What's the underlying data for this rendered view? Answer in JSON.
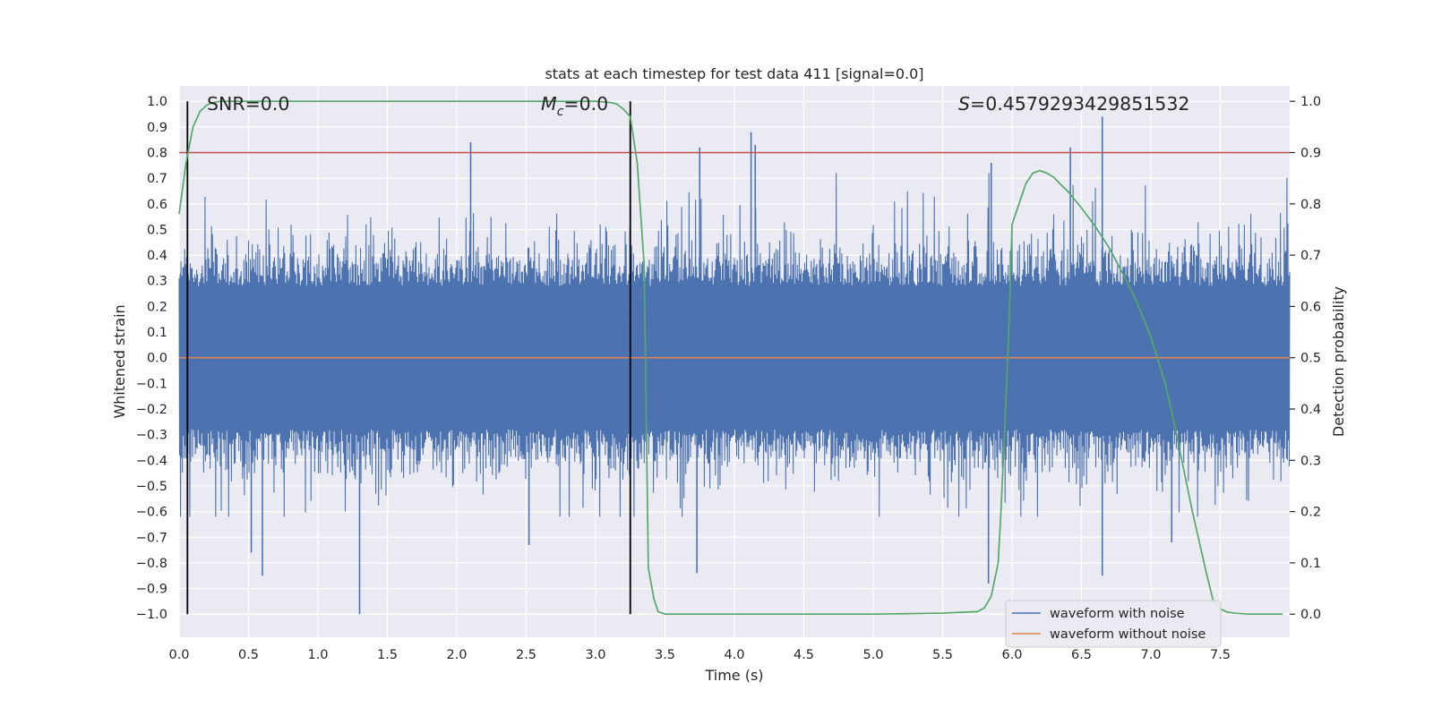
{
  "chart_data": {
    "type": "line",
    "title": "stats at each timestep for test data 411 [signal=0.0]",
    "xlabel": "Time (s)",
    "ylabel_left": "Whitened strain",
    "ylabel_right": "Detection probability",
    "xlim": [
      0.0,
      8.0
    ],
    "ylim_left": [
      -1.09,
      1.06
    ],
    "ylim_right": [
      -0.045,
      1.03
    ],
    "x_ticks": [
      0.0,
      0.5,
      1.0,
      1.5,
      2.0,
      2.5,
      3.0,
      3.5,
      4.0,
      4.5,
      5.0,
      5.5,
      6.0,
      6.5,
      7.0,
      7.5
    ],
    "x_tick_labels": [
      "0.0",
      "0.5",
      "1.0",
      "1.5",
      "2.0",
      "2.5",
      "3.0",
      "3.5",
      "4.0",
      "4.5",
      "5.0",
      "5.5",
      "6.0",
      "6.5",
      "7.0",
      "7.5"
    ],
    "y_left_ticks": [
      1.0,
      0.9,
      0.8,
      0.7,
      0.6,
      0.5,
      0.4,
      0.3,
      0.2,
      0.1,
      0.0,
      -0.1,
      -0.2,
      -0.3,
      -0.4,
      -0.5,
      -0.6,
      -0.7,
      -0.8,
      -0.9,
      -1.0
    ],
    "y_left_tick_labels": [
      "1.0",
      "0.9",
      "0.8",
      "0.7",
      "0.6",
      "0.5",
      "0.4",
      "0.3",
      "0.2",
      "0.1",
      "0.0",
      "−0.1",
      "−0.2",
      "−0.3",
      "−0.4",
      "−0.5",
      "−0.6",
      "−0.7",
      "−0.8",
      "−0.9",
      "−1.0"
    ],
    "y_right_ticks": [
      1.0,
      0.9,
      0.8,
      0.7,
      0.6,
      0.5,
      0.4,
      0.3,
      0.2,
      0.1,
      0.0
    ],
    "y_right_tick_labels": [
      "1.0",
      "0.9",
      "0.8",
      "0.7",
      "0.6",
      "0.5",
      "0.4",
      "0.3",
      "0.2",
      "0.1",
      "0.0"
    ],
    "annotations": {
      "snr": "SNR=0.0",
      "mc_symbol": "M",
      "mc_subscript": "c",
      "mc_value": "=0.0",
      "s_symbol": "S",
      "s_value": "=0.4579293429851532"
    },
    "series": [
      {
        "name": "waveform with noise",
        "color": "#4c72b0",
        "kind": "dense noise",
        "typical_band": [
          -0.45,
          0.6
        ],
        "spikes": [
          {
            "t": 1.3,
            "v": -1.0
          },
          {
            "t": 2.1,
            "v": 0.84
          },
          {
            "t": 4.12,
            "v": 0.88
          },
          {
            "t": 4.15,
            "v": 0.83
          },
          {
            "t": 3.75,
            "v": 0.82
          },
          {
            "t": 6.65,
            "v": 0.94
          },
          {
            "t": 6.42,
            "v": 0.82
          },
          {
            "t": 0.6,
            "v": -0.85
          },
          {
            "t": 5.83,
            "v": -0.88
          },
          {
            "t": 6.65,
            "v": -0.85
          },
          {
            "t": 3.73,
            "v": -0.84
          },
          {
            "t": 2.52,
            "v": -0.73
          },
          {
            "t": 0.52,
            "v": -0.76
          },
          {
            "t": 5.85,
            "v": 0.76
          },
          {
            "t": 7.15,
            "v": -0.72
          }
        ]
      },
      {
        "name": "waveform without noise",
        "color": "#dd8452",
        "x": [
          0.0,
          8.0
        ],
        "y": [
          0.0,
          0.0
        ]
      },
      {
        "name": "detection probability",
        "color": "#55a868",
        "axis": "right",
        "x": [
          0.0,
          0.05,
          0.1,
          0.15,
          0.2,
          0.25,
          0.3,
          0.4,
          0.6,
          1.0,
          2.0,
          3.0,
          3.1,
          3.15,
          3.2,
          3.25,
          3.3,
          3.35,
          3.38,
          3.42,
          3.45,
          3.5,
          3.7,
          4.5,
          5.0,
          5.5,
          5.75,
          5.8,
          5.85,
          5.9,
          5.92,
          5.95,
          5.98,
          6.0,
          6.05,
          6.1,
          6.15,
          6.2,
          6.25,
          6.3,
          6.35,
          6.4,
          6.5,
          6.6,
          6.7,
          6.8,
          6.9,
          7.0,
          7.1,
          7.15,
          7.2,
          7.3,
          7.4,
          7.45,
          7.5,
          7.55,
          7.6,
          7.7,
          7.95
        ],
        "y": [
          0.78,
          0.88,
          0.95,
          0.98,
          0.993,
          0.998,
          1.0,
          1.0,
          1.0,
          1.0,
          1.0,
          1.0,
          0.998,
          0.995,
          0.985,
          0.97,
          0.88,
          0.68,
          0.09,
          0.03,
          0.005,
          0.0,
          0.0,
          0.0,
          0.0,
          0.002,
          0.005,
          0.012,
          0.035,
          0.1,
          0.2,
          0.38,
          0.58,
          0.76,
          0.8,
          0.84,
          0.86,
          0.865,
          0.86,
          0.852,
          0.838,
          0.825,
          0.792,
          0.756,
          0.714,
          0.663,
          0.608,
          0.54,
          0.453,
          0.395,
          0.33,
          0.199,
          0.08,
          0.025,
          0.01,
          0.004,
          0.002,
          0.0,
          0.0
        ]
      }
    ],
    "hlines": [
      {
        "name": "threshold",
        "color": "#c44e52",
        "axis": "right",
        "y": 0.9
      }
    ],
    "vlines": [
      {
        "name": "window-start",
        "color": "#000000",
        "x": 0.06
      },
      {
        "name": "window-end",
        "color": "#000000",
        "x": 3.25
      }
    ],
    "legend": {
      "placement": "bottom-right",
      "entries": [
        {
          "label": "waveform with noise",
          "color": "#4c72b0"
        },
        {
          "label": "waveform without noise",
          "color": "#dd8452"
        }
      ]
    }
  }
}
